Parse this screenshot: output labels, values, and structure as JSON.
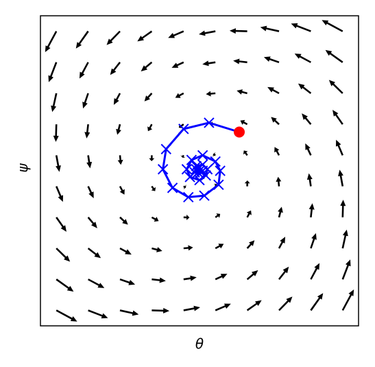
{
  "chart_data": {
    "type": "quiver",
    "xlabel": "θ",
    "ylabel": "ψ",
    "xlim": [
      -1,
      1
    ],
    "ylim": [
      -1,
      1
    ],
    "arrow_color": "#000000",
    "quiver": {
      "x": [
        -0.9,
        -0.7,
        -0.5,
        -0.3,
        -0.1,
        0.1,
        0.3,
        0.5,
        0.7,
        0.9
      ],
      "y": [
        0.9,
        0.7,
        0.5,
        0.3,
        0.1,
        -0.1,
        -0.3,
        -0.5,
        -0.7,
        -0.9
      ],
      "u": [
        [
          -0.63,
          -0.69,
          -0.75,
          -0.81,
          -0.87,
          -0.93,
          -0.99,
          -1.05,
          -1.11,
          -1.17
        ],
        [
          -0.43,
          -0.49,
          -0.55,
          -0.61,
          -0.67,
          -0.73,
          -0.79,
          -0.85,
          -0.91,
          -0.97
        ],
        [
          -0.23,
          -0.29,
          -0.35,
          -0.41,
          -0.47,
          -0.53,
          -0.59,
          -0.65,
          -0.71,
          -0.77
        ],
        [
          -0.03,
          -0.09,
          -0.15,
          -0.21,
          -0.27,
          -0.33,
          -0.39,
          -0.45,
          -0.51,
          -0.57
        ],
        [
          0.17,
          0.11,
          0.05,
          -0.01,
          -0.07,
          -0.13,
          -0.19,
          -0.25,
          -0.31,
          -0.37
        ],
        [
          0.37,
          0.31,
          0.25,
          0.19,
          0.13,
          0.07,
          0.01,
          -0.05,
          -0.11,
          -0.17
        ],
        [
          0.57,
          0.51,
          0.45,
          0.39,
          0.33,
          0.27,
          0.21,
          0.15,
          0.09,
          0.03
        ],
        [
          0.77,
          0.71,
          0.65,
          0.59,
          0.53,
          0.47,
          0.41,
          0.35,
          0.29,
          0.23
        ],
        [
          0.97,
          0.91,
          0.85,
          0.79,
          0.73,
          0.67,
          0.61,
          0.55,
          0.49,
          0.43
        ],
        [
          1.17,
          1.11,
          1.05,
          0.99,
          0.93,
          0.87,
          0.81,
          0.75,
          0.69,
          0.63
        ]
      ],
      "v": [
        [
          -1.17,
          -0.97,
          -0.77,
          -0.57,
          -0.37,
          -0.17,
          0.03,
          0.23,
          0.43,
          0.63
        ],
        [
          -1.11,
          -0.91,
          -0.71,
          -0.51,
          -0.31,
          -0.11,
          0.09,
          0.29,
          0.49,
          0.69
        ],
        [
          -1.05,
          -0.85,
          -0.65,
          -0.45,
          -0.25,
          -0.05,
          0.15,
          0.35,
          0.55,
          0.75
        ],
        [
          -0.99,
          -0.79,
          -0.59,
          -0.39,
          -0.19,
          0.01,
          0.21,
          0.41,
          0.61,
          0.81
        ],
        [
          -0.93,
          -0.73,
          -0.53,
          -0.33,
          -0.13,
          0.07,
          0.27,
          0.47,
          0.67,
          0.87
        ],
        [
          -0.87,
          -0.67,
          -0.47,
          -0.27,
          -0.07,
          0.13,
          0.33,
          0.53,
          0.73,
          0.93
        ],
        [
          -0.81,
          -0.61,
          -0.41,
          -0.21,
          -0.01,
          0.19,
          0.39,
          0.59,
          0.79,
          0.99
        ],
        [
          -0.75,
          -0.55,
          -0.35,
          -0.15,
          0.05,
          0.25,
          0.45,
          0.65,
          0.85,
          1.05
        ],
        [
          -0.69,
          -0.49,
          -0.29,
          -0.09,
          0.11,
          0.31,
          0.51,
          0.71,
          0.91,
          1.11
        ],
        [
          -0.63,
          -0.43,
          -0.23,
          -0.03,
          0.17,
          0.37,
          0.57,
          0.77,
          0.97,
          1.17
        ]
      ]
    },
    "series": [
      {
        "color": "#0000ff",
        "start_color": "#ff0000",
        "x": [
          0.25,
          0.06,
          -0.1,
          -0.21,
          -0.23,
          -0.17,
          -0.07,
          0.03,
          0.12,
          0.13,
          0.1,
          0.02,
          -0.05,
          -0.08,
          -0.06,
          0,
          0.04,
          0.05,
          0.02,
          -0.02,
          -0.03,
          0,
          0.02,
          0,
          -0.02,
          -0.01,
          0
        ],
        "y": [
          0.25,
          0.31,
          0.27,
          0.14,
          0.01,
          -0.11,
          -0.17,
          -0.16,
          -0.09,
          0,
          0.06,
          0.1,
          0.07,
          0.01,
          -0.04,
          -0.06,
          -0.03,
          0.01,
          0.04,
          0.03,
          -0.01,
          -0.02,
          0,
          0.02,
          0.01,
          -0.01,
          0
        ]
      }
    ]
  }
}
